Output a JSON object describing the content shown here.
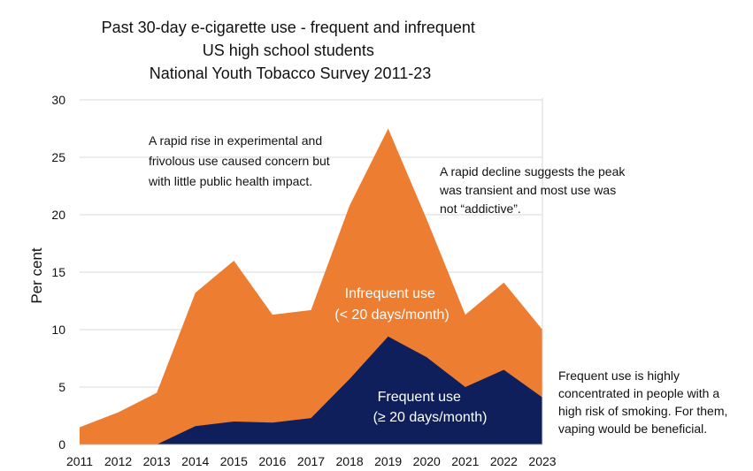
{
  "chart_data": {
    "type": "area",
    "title": [
      "Past 30-day e-cigarette use - frequent and infrequent",
      "US high school students",
      "National Youth Tobacco Survey 2011-23"
    ],
    "xlabel": "",
    "ylabel": "Per cent",
    "x": [
      2011,
      2012,
      2013,
      2014,
      2015,
      2016,
      2017,
      2018,
      2019,
      2020,
      2021,
      2022,
      2023
    ],
    "ylim": [
      0,
      30
    ],
    "yticks": [
      0,
      5,
      10,
      15,
      20,
      25,
      30
    ],
    "grid": "horizontal",
    "stacked": false,
    "series": [
      {
        "name": "Infrequent use (< 20 days/month)",
        "label_lines": [
          "Infrequent use",
          "(< 20 days/month)"
        ],
        "values": [
          1.5,
          2.8,
          4.5,
          13.2,
          16.0,
          11.3,
          11.7,
          20.8,
          27.5,
          19.6,
          11.3,
          14.1,
          10.0
        ],
        "color": "#ED7D31"
      },
      {
        "name": "Frequent use (≥ 20 days/month)",
        "label_lines": [
          "Frequent use",
          "(≥ 20 days/month)"
        ],
        "values": [
          0.0,
          0.0,
          0.0,
          1.6,
          2.0,
          1.9,
          2.3,
          5.7,
          9.4,
          7.6,
          5.0,
          6.5,
          4.1
        ],
        "color": "#0F1F5C"
      }
    ],
    "annotations": [
      {
        "id": "rise",
        "lines": [
          "A rapid rise in experimental and",
          "frivolous use caused concern but",
          "with little public health impact."
        ]
      },
      {
        "id": "decline",
        "lines": [
          "A rapid decline suggests the peak",
          "was transient and most use was",
          "not “addictive”."
        ]
      },
      {
        "id": "frequent",
        "lines": [
          "Frequent use is highly",
          "concentrated in people with a",
          "high risk of smoking. For them,",
          "vaping would be beneficial."
        ]
      }
    ]
  }
}
